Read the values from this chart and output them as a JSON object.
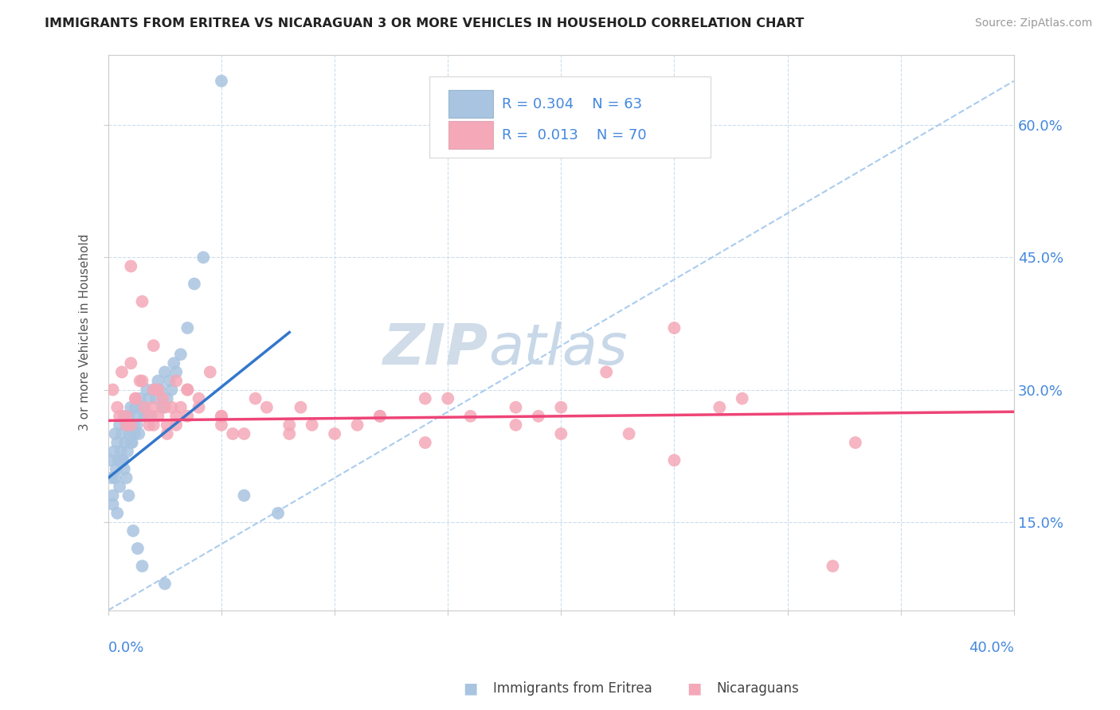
{
  "title": "IMMIGRANTS FROM ERITREA VS NICARAGUAN 3 OR MORE VEHICLES IN HOUSEHOLD CORRELATION CHART",
  "source": "Source: ZipAtlas.com",
  "ylabel_label": "3 or more Vehicles in Household",
  "legend_bottom_left": "Immigrants from Eritrea",
  "legend_bottom_right": "Nicaraguans",
  "R1": "0.304",
  "N1": "63",
  "R2": "0.013",
  "N2": "70",
  "blue_color": "#a8c4e0",
  "pink_color": "#f4a8b8",
  "blue_line_color": "#3377cc",
  "pink_line_color": "#ee4477",
  "right_axis_color": "#4488dd",
  "watermark_zip": "ZIP",
  "watermark_atlas": "atlas",
  "xlim": [
    0.0,
    40.0
  ],
  "ylim": [
    5.0,
    68.0
  ],
  "yticks": [
    15.0,
    30.0,
    45.0,
    60.0
  ],
  "blue_scatter_x": [
    0.1,
    0.15,
    0.2,
    0.25,
    0.3,
    0.35,
    0.4,
    0.45,
    0.5,
    0.55,
    0.6,
    0.65,
    0.7,
    0.75,
    0.8,
    0.85,
    0.9,
    0.95,
    1.0,
    1.05,
    1.1,
    1.15,
    1.2,
    1.25,
    1.3,
    1.35,
    1.4,
    1.5,
    1.6,
    1.7,
    1.8,
    1.9,
    2.0,
    2.1,
    2.2,
    2.3,
    2.4,
    2.5,
    2.6,
    2.7,
    2.8,
    2.9,
    3.0,
    3.2,
    3.5,
    3.8,
    4.2,
    5.0,
    6.0,
    7.5,
    0.3,
    0.5,
    0.7,
    0.9,
    1.1,
    1.3,
    0.2,
    0.4,
    0.6,
    0.8,
    1.0,
    1.5,
    2.5
  ],
  "blue_scatter_y": [
    22,
    20,
    18,
    23,
    25,
    21,
    24,
    22,
    26,
    23,
    25,
    22,
    27,
    24,
    26,
    23,
    27,
    25,
    28,
    24,
    26,
    25,
    28,
    26,
    27,
    25,
    29,
    28,
    27,
    30,
    29,
    27,
    30,
    29,
    31,
    30,
    28,
    32,
    29,
    31,
    30,
    33,
    32,
    34,
    37,
    42,
    45,
    65,
    18,
    16,
    20,
    19,
    21,
    18,
    14,
    12,
    17,
    16,
    22,
    20,
    24,
    10,
    8
  ],
  "pink_scatter_x": [
    0.2,
    0.4,
    0.6,
    0.8,
    1.0,
    1.2,
    1.4,
    1.6,
    1.8,
    2.0,
    2.2,
    2.4,
    2.6,
    2.8,
    3.0,
    3.5,
    4.0,
    4.5,
    5.0,
    6.0,
    7.0,
    8.0,
    10.0,
    12.0,
    14.0,
    16.0,
    18.0,
    20.0,
    22.0,
    25.0,
    28.0,
    32.0,
    1.0,
    1.5,
    2.0,
    2.5,
    3.0,
    3.5,
    0.5,
    0.8,
    1.2,
    1.5,
    1.8,
    2.2,
    2.6,
    3.2,
    4.0,
    5.0,
    6.5,
    8.5,
    11.0,
    15.0,
    19.0,
    23.0,
    27.0,
    33.0,
    1.0,
    2.0,
    3.0,
    5.0,
    8.0,
    12.0,
    18.0,
    25.0,
    2.0,
    3.5,
    5.5,
    9.0,
    14.0,
    20.0
  ],
  "pink_scatter_y": [
    30,
    28,
    32,
    27,
    33,
    29,
    31,
    28,
    26,
    30,
    27,
    29,
    25,
    28,
    26,
    30,
    28,
    32,
    27,
    25,
    28,
    26,
    25,
    27,
    29,
    27,
    26,
    28,
    32,
    37,
    29,
    10,
    44,
    40,
    35,
    28,
    31,
    30,
    27,
    26,
    29,
    31,
    27,
    30,
    26,
    28,
    29,
    27,
    29,
    28,
    26,
    29,
    27,
    25,
    28,
    24,
    26,
    28,
    27,
    26,
    25,
    27,
    28,
    22,
    26,
    27,
    25,
    26,
    24,
    25
  ],
  "blue_line_x": [
    0.0,
    8.0
  ],
  "blue_line_y": [
    20.0,
    36.5
  ],
  "pink_line_x": [
    0.0,
    40.0
  ],
  "pink_line_y": [
    26.5,
    27.5
  ],
  "dash_line_x": [
    0.0,
    40.0
  ],
  "dash_line_y": [
    5.0,
    65.0
  ]
}
